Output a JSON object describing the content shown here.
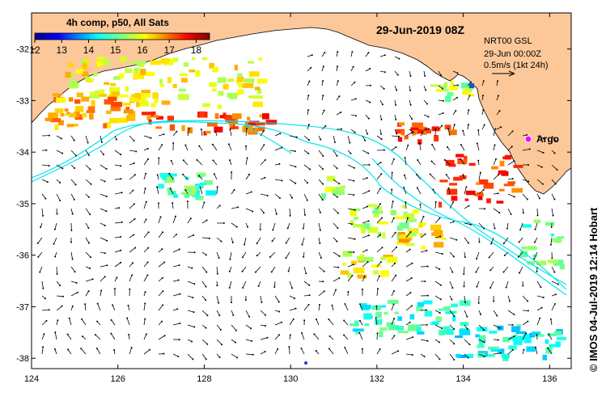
{
  "map": {
    "title": "29-Jun-2019 08Z",
    "colorbar": {
      "label": "4h comp, p50, All Sats",
      "ticks": [
        "12",
        "13",
        "14",
        "15",
        "16",
        "17",
        "18"
      ],
      "range": [
        12,
        18.5
      ],
      "colormap": "jet"
    },
    "current_info": {
      "line1": "NRT00 GSL",
      "line2": "29-Jun 00:00Z",
      "line3": "0.5m/s (1kt 24h)"
    },
    "marker": {
      "label": "Argo",
      "color": "#ff00ff"
    },
    "x_axis": {
      "ticks": [
        "124",
        "126",
        "128",
        "130",
        "132",
        "134",
        "136"
      ],
      "range": [
        124,
        136.5
      ]
    },
    "y_axis": {
      "ticks": [
        "-32",
        "-33",
        "-34",
        "-35",
        "-36",
        "-37",
        "-38"
      ],
      "range": [
        -38.2,
        -31.3
      ]
    },
    "colors": {
      "land": "#fcc89a",
      "contour": "#00e5ee",
      "arrow": "#000000",
      "frame": "#000000"
    }
  },
  "credit": "© IMOS 04-Jul-2019 12:14 Hobart"
}
